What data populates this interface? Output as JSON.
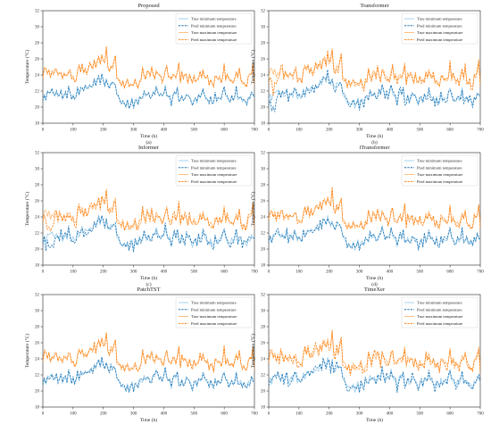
{
  "figure": {
    "xlabel": "Time (h)",
    "ylabel": "Temperature (°C)",
    "legend_position": "top-right",
    "colors": {
      "true_min": "#8ec6ea",
      "pred_min": "#1f77b4",
      "true_max": "#ffb163",
      "pred_max": "#ff7f0e"
    }
  },
  "chart_data": [
    {
      "type": "line",
      "title": "Proposed",
      "caption": "(a)",
      "variant": 0,
      "noise": 0.25,
      "xlim": [
        0,
        700
      ],
      "ylim": [
        18,
        32
      ],
      "xticks": [
        0,
        100,
        200,
        300,
        400,
        500,
        600,
        700
      ],
      "yticks": [
        18,
        20,
        22,
        24,
        26,
        28,
        30,
        32
      ],
      "series": [
        {
          "name": "True minimum temperature",
          "key": "true_min"
        },
        {
          "name": "Pred minimum temperature",
          "key": "pred_min"
        },
        {
          "name": "True maximum temperature",
          "key": "true_max"
        },
        {
          "name": "Pred maximum temperature",
          "key": "pred_max"
        }
      ]
    },
    {
      "type": "line",
      "title": "Transformer",
      "caption": "(b)",
      "variant": 1,
      "noise": 0.55,
      "xlim": [
        0,
        700
      ],
      "ylim": [
        18,
        32
      ],
      "xticks": [
        0,
        100,
        200,
        300,
        400,
        500,
        600,
        700
      ],
      "yticks": [
        18,
        20,
        22,
        24,
        26,
        28,
        30,
        32
      ],
      "series": [
        {
          "name": "True minimum temperature",
          "key": "true_min"
        },
        {
          "name": "Pred minimum temperature",
          "key": "pred_min"
        },
        {
          "name": "True maximum temperature",
          "key": "true_max"
        },
        {
          "name": "Pred maximum temperature",
          "key": "pred_max"
        }
      ]
    },
    {
      "type": "line",
      "title": "Informer",
      "caption": "(c)",
      "variant": 2,
      "noise": 0.6,
      "xlim": [
        0,
        700
      ],
      "ylim": [
        18,
        32
      ],
      "xticks": [
        0,
        100,
        200,
        300,
        400,
        500,
        600,
        700
      ],
      "yticks": [
        18,
        20,
        22,
        24,
        26,
        28,
        30,
        32
      ],
      "series": [
        {
          "name": "True minimum temperature",
          "key": "true_min"
        },
        {
          "name": "Pred minimum temperature",
          "key": "pred_min"
        },
        {
          "name": "True maximum temperature",
          "key": "true_max"
        },
        {
          "name": "Pred maximum temperature",
          "key": "pred_max"
        }
      ]
    },
    {
      "type": "line",
      "title": "iTransformer",
      "caption": "(d)",
      "variant": 3,
      "noise": 0.4,
      "xlim": [
        0,
        700
      ],
      "ylim": [
        18,
        32
      ],
      "xticks": [
        0,
        100,
        200,
        300,
        400,
        500,
        600,
        700
      ],
      "yticks": [
        18,
        20,
        22,
        24,
        26,
        28,
        30,
        32
      ],
      "series": [
        {
          "name": "True minimum temperature",
          "key": "true_min"
        },
        {
          "name": "Pred minimum temperature",
          "key": "pred_min"
        },
        {
          "name": "True maximum temperature",
          "key": "true_max"
        },
        {
          "name": "Pred maximum temperature",
          "key": "pred_max"
        }
      ]
    },
    {
      "type": "line",
      "title": "PatchTST",
      "caption": "(e)",
      "variant": 4,
      "noise": 0.35,
      "xlim": [
        0,
        700
      ],
      "ylim": [
        18,
        32
      ],
      "xticks": [
        0,
        100,
        200,
        300,
        400,
        500,
        600,
        700
      ],
      "yticks": [
        18,
        20,
        22,
        24,
        26,
        28,
        30,
        32
      ],
      "series": [
        {
          "name": "True minimum temperature",
          "key": "true_min"
        },
        {
          "name": "Pred minimum temperature",
          "key": "pred_min"
        },
        {
          "name": "True maximum temperature",
          "key": "true_max"
        },
        {
          "name": "Pred maximum temperature",
          "key": "pred_max"
        }
      ]
    },
    {
      "type": "line",
      "title": "TimeXer",
      "caption": "(f)",
      "variant": 5,
      "noise": 0.7,
      "xlim": [
        0,
        700
      ],
      "ylim": [
        18,
        32
      ],
      "xticks": [
        0,
        100,
        200,
        300,
        400,
        500,
        600,
        700
      ],
      "yticks": [
        18,
        20,
        22,
        24,
        26,
        28,
        30,
        32
      ],
      "series": [
        {
          "name": "True minimum temperature",
          "key": "true_min"
        },
        {
          "name": "Pred minimum temperature",
          "key": "pred_min"
        },
        {
          "name": "True maximum temperature",
          "key": "true_max"
        },
        {
          "name": "Pred maximum temperature",
          "key": "pred_max"
        }
      ]
    }
  ]
}
